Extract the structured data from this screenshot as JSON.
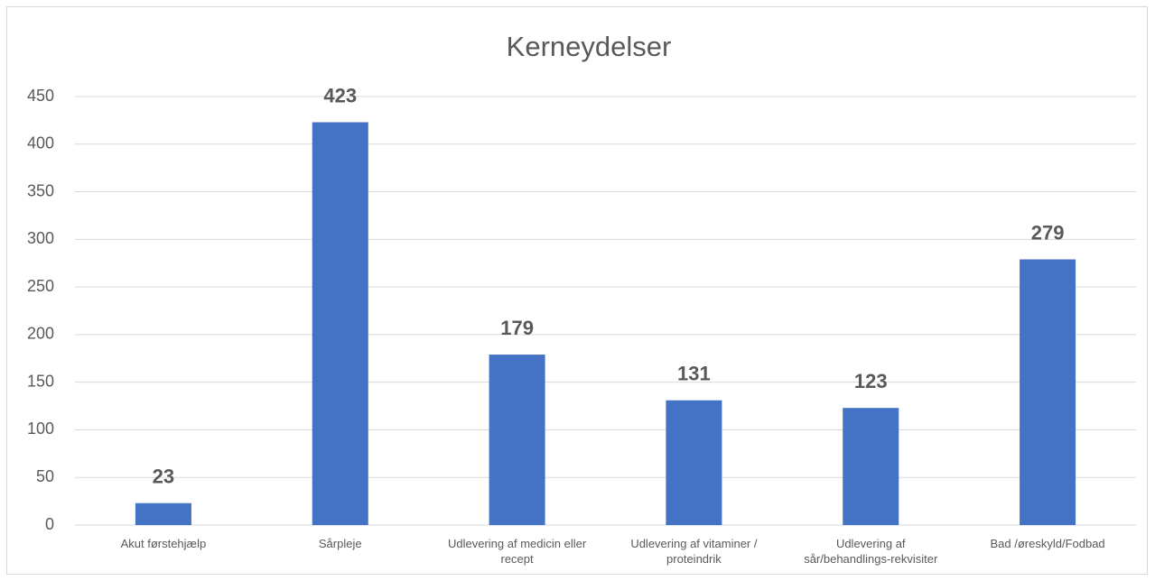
{
  "chart_data": {
    "type": "bar",
    "title": "Kerneydelser",
    "categories": [
      "Akut førstehjælp",
      "Sårpleje",
      "Udlevering af medicin eller recept",
      "Udlevering af vitaminer / proteindrik",
      "Udlevering af sår/behandlings-rekvisiter",
      "Bad /øreskyld/Fodbad"
    ],
    "values": [
      23,
      423,
      179,
      131,
      123,
      279
    ],
    "color": "#4472c4",
    "ylim": [
      0,
      450
    ],
    "yticks": [
      0,
      50,
      100,
      150,
      200,
      250,
      300,
      350,
      400,
      450
    ],
    "grid": true
  }
}
